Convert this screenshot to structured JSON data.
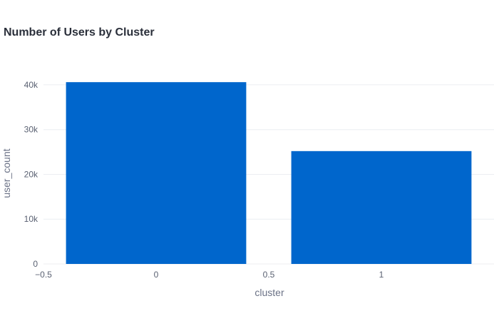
{
  "chart_data": {
    "type": "bar",
    "title": "Number of Users by Cluster",
    "xlabel": "cluster",
    "ylabel": "user_count",
    "x": [
      0,
      1
    ],
    "values": [
      40600,
      25200
    ],
    "xlim": [
      -0.5,
      1.5
    ],
    "ylim": [
      0,
      47000
    ],
    "x_ticks": [
      -0.5,
      0,
      0.5,
      1
    ],
    "x_tick_labels": [
      "−0.5",
      "0",
      "0.5",
      "1"
    ],
    "y_ticks": [
      0,
      10000,
      20000,
      30000,
      40000
    ],
    "y_tick_labels": [
      "0",
      "10k",
      "20k",
      "30k",
      "40k"
    ],
    "bar_width": 0.8,
    "grid": true,
    "legend": "none",
    "colors": {
      "bar": "#0066cc",
      "grid": "#eceef2",
      "text": "#2a2f3a",
      "tick": "#5a6172"
    }
  }
}
